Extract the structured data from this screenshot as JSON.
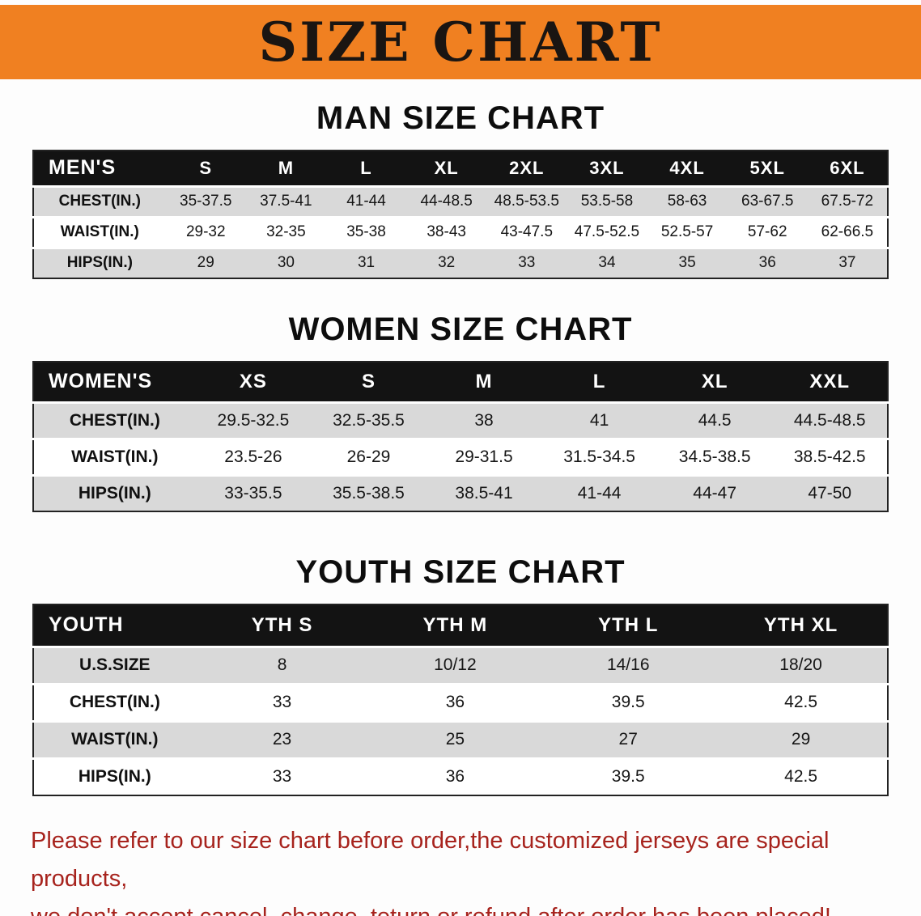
{
  "colors": {
    "banner-orange": "#f08021",
    "title-black": "#1a1512",
    "table-header-black": "#131313",
    "stripe-gray": "#d9d9d9",
    "note-red": "#a7231d"
  },
  "banner": {
    "title": "SIZE CHART"
  },
  "sections": [
    {
      "heading": "MAN SIZE CHART",
      "table": {
        "header": [
          "MEN'S",
          "S",
          "M",
          "L",
          "XL",
          "2XL",
          "3XL",
          "4XL",
          "5XL",
          "6XL"
        ],
        "rows": [
          {
            "label": "CHEST(IN.)",
            "values": [
              "35-37.5",
              "37.5-41",
              "41-44",
              "44-48.5",
              "48.5-53.5",
              "53.5-58",
              "58-63",
              "63-67.5",
              "67.5-72"
            ]
          },
          {
            "label": "WAIST(IN.)",
            "values": [
              "29-32",
              "32-35",
              "35-38",
              "38-43",
              "43-47.5",
              "47.5-52.5",
              "52.5-57",
              "57-62",
              "62-66.5"
            ]
          },
          {
            "label": "HIPS(IN.)",
            "values": [
              "29",
              "30",
              "31",
              "32",
              "33",
              "34",
              "35",
              "36",
              "37"
            ]
          }
        ]
      }
    },
    {
      "heading": "WOMEN SIZE CHART",
      "table": {
        "header": [
          "WOMEN'S",
          "XS",
          "S",
          "M",
          "L",
          "XL",
          "XXL"
        ],
        "rows": [
          {
            "label": "CHEST(IN.)",
            "values": [
              "29.5-32.5",
              "32.5-35.5",
              "38",
              "41",
              "44.5",
              "44.5-48.5"
            ]
          },
          {
            "label": "WAIST(IN.)",
            "values": [
              "23.5-26",
              "26-29",
              "29-31.5",
              "31.5-34.5",
              "34.5-38.5",
              "38.5-42.5"
            ]
          },
          {
            "label": "HIPS(IN.)",
            "values": [
              "33-35.5",
              "35.5-38.5",
              "38.5-41",
              "41-44",
              "44-47",
              "47-50"
            ]
          }
        ]
      }
    },
    {
      "heading": "YOUTH SIZE CHART",
      "table": {
        "header": [
          "YOUTH",
          "YTH S",
          "YTH M",
          "YTH L",
          "YTH XL"
        ],
        "rows": [
          {
            "label": "U.S.SIZE",
            "values": [
              "8",
              "10/12",
              "14/16",
              "18/20"
            ]
          },
          {
            "label": "CHEST(IN.)",
            "values": [
              "33",
              "36",
              "39.5",
              "42.5"
            ]
          },
          {
            "label": "WAIST(IN.)",
            "values": [
              "23",
              "25",
              "27",
              "29"
            ]
          },
          {
            "label": "HIPS(IN.)",
            "values": [
              "33",
              "36",
              "39.5",
              "42.5"
            ]
          }
        ]
      }
    }
  ],
  "footer": {
    "line1": "Please refer to our size chart before order,the customized jerseys are special products,",
    "line2": "we don't accept cancel, change, teturn or refund after order has been placed!"
  }
}
